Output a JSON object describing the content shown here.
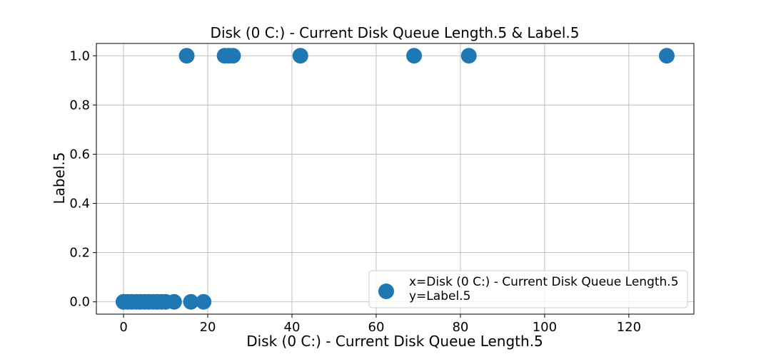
{
  "chart_data": {
    "type": "scatter",
    "title": "Disk (0 C:) - Current Disk Queue Length.5 & Label.5",
    "xlabel": "Disk (0 C:) - Current Disk Queue Length.5",
    "ylabel": "Label.5",
    "xlim": [
      -6.45,
      135.45
    ],
    "ylim": [
      -0.05,
      1.05
    ],
    "xticks": [
      0,
      20,
      40,
      60,
      80,
      100,
      120
    ],
    "yticks": [
      0.0,
      0.2,
      0.4,
      0.6,
      0.8,
      1.0
    ],
    "xtick_labels": [
      "0",
      "20",
      "40",
      "60",
      "80",
      "100",
      "120"
    ],
    "ytick_labels": [
      "0.0",
      "0.2",
      "0.4",
      "0.6",
      "0.8",
      "1.0"
    ],
    "grid": true,
    "legend_position": "lower-right",
    "series": [
      {
        "name": "x=Disk (0 C:) - Current Disk Queue Length.5\ny=Label.5",
        "color": "#1f77b4",
        "points": [
          [
            0,
            0
          ],
          [
            0,
            0
          ],
          [
            1,
            0
          ],
          [
            2,
            0
          ],
          [
            3,
            0
          ],
          [
            4,
            0
          ],
          [
            5,
            0
          ],
          [
            6,
            0
          ],
          [
            7,
            0
          ],
          [
            8,
            0
          ],
          [
            9,
            0
          ],
          [
            10,
            0
          ],
          [
            12,
            0
          ],
          [
            16,
            0
          ],
          [
            19,
            0
          ],
          [
            15,
            1
          ],
          [
            24,
            1
          ],
          [
            25,
            1
          ],
          [
            26,
            1
          ],
          [
            42,
            1
          ],
          [
            69,
            1
          ],
          [
            82,
            1
          ],
          [
            129,
            1
          ]
        ]
      }
    ]
  }
}
